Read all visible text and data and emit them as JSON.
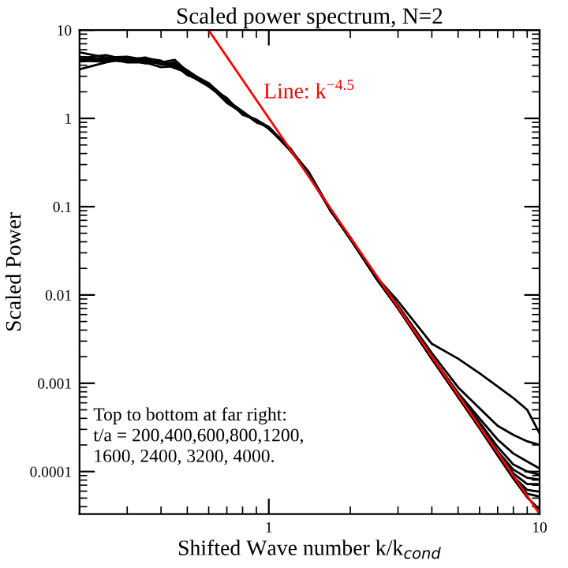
{
  "chart_data": {
    "type": "line",
    "title": "Scaled power spectrum, N=2",
    "xlabel": "Shifted Wave number k/k$_{cond}$",
    "ylabel": "Scaled Power",
    "log": "xy",
    "grid": false,
    "marker": "none",
    "line_style": "solid",
    "x": [
      0.2,
      0.25,
      0.3,
      0.35,
      0.4,
      0.45,
      0.5,
      0.6,
      0.7,
      0.8,
      0.9,
      1.0,
      1.2,
      1.4,
      1.7,
      2.0,
      2.5,
      3,
      4,
      5,
      6,
      7,
      8,
      9,
      10
    ],
    "xlim": [
      0.2,
      10
    ],
    "ylim": [
      3.3e-05,
      10
    ],
    "xticks": [
      1,
      10
    ],
    "yticks": [
      0.0001,
      0.001,
      0.01,
      0.1,
      1,
      10
    ],
    "series": [
      {
        "color": "#000000",
        "values": [
          4.8,
          5.2,
          4.6,
          4.9,
          4.3,
          4.6,
          3.4,
          2.5,
          1.6,
          1.2,
          0.92,
          0.8,
          0.44,
          0.25,
          0.088,
          0.044,
          0.016,
          0.0085,
          0.0028,
          0.0019,
          0.0013,
          0.00092,
          0.00068,
          0.0005,
          0.00027
        ]
      },
      {
        "color": "#000000",
        "values": [
          4.5,
          4.4,
          4.7,
          4.2,
          4.4,
          3.9,
          3.2,
          2.3,
          1.7,
          1.1,
          0.97,
          0.76,
          0.46,
          0.23,
          0.09,
          0.043,
          0.0158,
          0.0076,
          0.0022,
          0.0009,
          0.00052,
          0.00033,
          0.00026,
          0.00022,
          0.0002
        ]
      },
      {
        "color": "#000000",
        "values": [
          5.6,
          4.9,
          5.0,
          4.6,
          4.1,
          4.3,
          3.5,
          2.4,
          1.5,
          1.15,
          0.94,
          0.79,
          0.43,
          0.24,
          0.087,
          0.045,
          0.0155,
          0.0074,
          0.002,
          0.00078,
          0.0004,
          0.00023,
          0.00016,
          0.00013,
          0.000108
        ]
      },
      {
        "color": "#000000",
        "values": [
          4.9,
          4.6,
          4.4,
          4.8,
          4.5,
          3.8,
          3.3,
          2.4,
          1.6,
          1.18,
          0.9,
          0.8,
          0.45,
          0.24,
          0.09,
          0.043,
          0.0154,
          0.0073,
          0.00195,
          0.00075,
          0.00036,
          0.00019,
          0.00012,
          0.0001,
          9.2e-05
        ]
      },
      {
        "color": "#000000",
        "values": [
          3.6,
          4.3,
          4.8,
          4.4,
          4.2,
          4.1,
          3.4,
          2.3,
          1.6,
          1.12,
          0.95,
          0.77,
          0.44,
          0.23,
          0.089,
          0.044,
          0.0152,
          0.0072,
          0.0019,
          0.00073,
          0.00034,
          0.00017,
          0.000105,
          8.5e-05,
          8.1e-05
        ]
      },
      {
        "color": "#000000",
        "values": [
          4.7,
          4.8,
          4.3,
          4.3,
          3.8,
          3.9,
          3.3,
          2.4,
          1.55,
          1.16,
          0.93,
          0.78,
          0.45,
          0.24,
          0.088,
          0.043,
          0.0153,
          0.0072,
          0.0019,
          0.00072,
          0.00033,
          0.000165,
          9.5e-05,
          7.2e-05,
          7.2e-05
        ]
      },
      {
        "color": "#000000",
        "values": [
          5.0,
          4.5,
          4.5,
          4.6,
          4.4,
          4.0,
          3.1,
          2.5,
          1.65,
          1.14,
          0.96,
          0.8,
          0.44,
          0.25,
          0.09,
          0.044,
          0.0154,
          0.0071,
          0.0019,
          0.00071,
          0.00032,
          0.00016,
          8.8e-05,
          6.2e-05,
          5.9e-05
        ]
      },
      {
        "color": "#000000",
        "values": [
          4.4,
          4.7,
          4.9,
          4.5,
          4.3,
          3.7,
          3.3,
          2.35,
          1.6,
          1.17,
          0.94,
          0.78,
          0.45,
          0.24,
          0.089,
          0.043,
          0.0152,
          0.0071,
          0.0019,
          0.0007,
          0.00031,
          0.000155,
          8.6e-05,
          5.6e-05,
          5.2e-05
        ]
      },
      {
        "color": "#000000",
        "values": [
          4.6,
          4.6,
          4.6,
          4.7,
          4.1,
          4.0,
          3.4,
          2.45,
          1.6,
          1.13,
          0.95,
          0.79,
          0.44,
          0.24,
          0.088,
          0.044,
          0.0153,
          0.007,
          0.0019,
          0.0007,
          0.00031,
          0.000152,
          8.3e-05,
          5.1e-05,
          3.7e-05
        ]
      },
      {
        "color": "#ff0000",
        "x": [
          0.6,
          10
        ],
        "values": [
          9.96,
          3.3e-05
        ]
      }
    ],
    "annotations": [
      "Line: k$^{−4.5}$",
      "Top to bottom at far right:\nt/a = 200,400,600,800,1200,\n1600, 2400, 3200, 4000."
    ]
  }
}
